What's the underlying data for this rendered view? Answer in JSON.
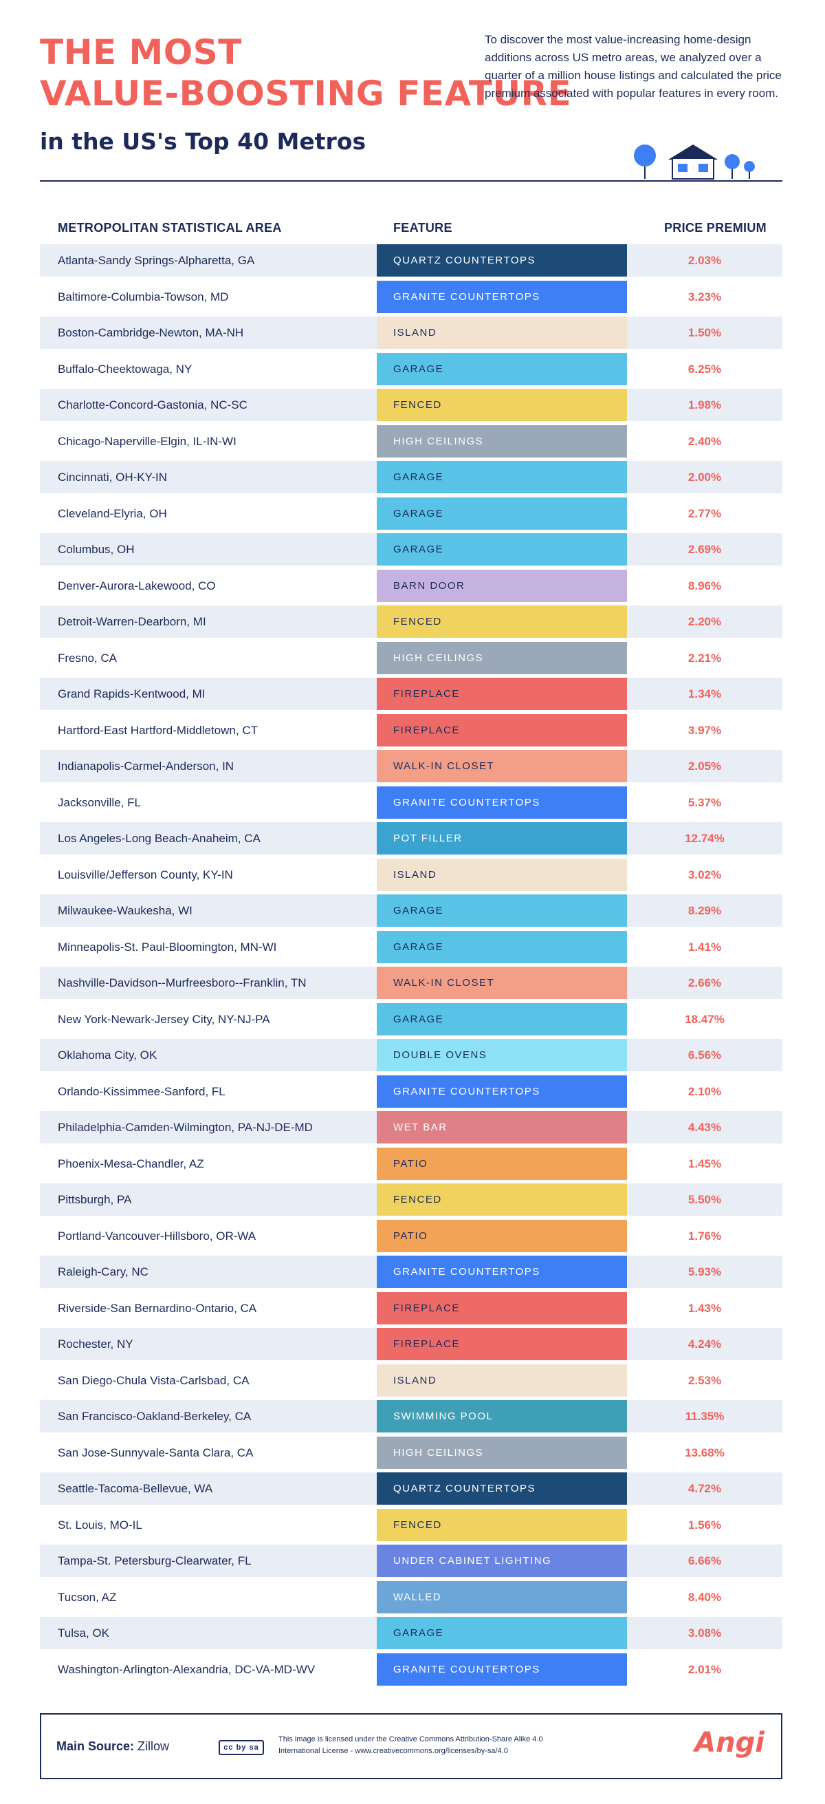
{
  "header": {
    "title_line1": "THE MOST",
    "title_line2": "VALUE-BOOSTING FEATURE",
    "title_line3": "in the US's Top 40 Metros",
    "intro": "To discover the most value-increasing home-design additions across US metro areas, we analyzed over a quarter of a million house listings and calculated the price premium associated with popular features in every room."
  },
  "colors": {
    "accent": "#f0625a",
    "navy": "#1c2a5a",
    "row_stripe": "#e9eef6"
  },
  "feature_colors": {
    "QUARTZ COUNTERTOPS": {
      "bg": "#1b4b76",
      "fg": "#ffffff"
    },
    "GRANITE COUNTERTOPS": {
      "bg": "#3e7ff5",
      "fg": "#ffffff"
    },
    "ISLAND": {
      "bg": "#f2e2d0",
      "fg": "#1c2a5a"
    },
    "GARAGE": {
      "bg": "#58c3e6",
      "fg": "#1c2a5a"
    },
    "FENCED": {
      "bg": "#f0d35f",
      "fg": "#1c2a5a"
    },
    "HIGH CEILINGS": {
      "bg": "#9aa8b8",
      "fg": "#ffffff"
    },
    "BARN DOOR": {
      "bg": "#c6b2e0",
      "fg": "#1c2a5a"
    },
    "FIREPLACE": {
      "bg": "#ee6a66",
      "fg": "#1c2a5a"
    },
    "WALK-IN CLOSET": {
      "bg": "#f39e86",
      "fg": "#1c2a5a"
    },
    "POT FILLER": {
      "bg": "#3aa3d0",
      "fg": "#ffffff"
    },
    "DOUBLE OVENS": {
      "bg": "#8ee2f6",
      "fg": "#1c2a5a"
    },
    "WET BAR": {
      "bg": "#de8086",
      "fg": "#ffffff"
    },
    "PATIO": {
      "bg": "#f3a356",
      "fg": "#1c2a5a"
    },
    "SWIMMING POOL": {
      "bg": "#3f9fb6",
      "fg": "#ffffff"
    },
    "UNDER CABINET LIGHTING": {
      "bg": "#6a84e2",
      "fg": "#ffffff"
    },
    "WALLED": {
      "bg": "#6ca5d8",
      "fg": "#ffffff"
    }
  },
  "chart_data": {
    "type": "table",
    "columns": [
      "METROPOLITAN STATISTICAL AREA",
      "FEATURE",
      "PRICE PREMIUM"
    ],
    "rows": [
      {
        "metro": "Atlanta-Sandy Springs-Alpharetta, GA",
        "feature": "QUARTZ COUNTERTOPS",
        "premium": "2.03%"
      },
      {
        "metro": "Baltimore-Columbia-Towson, MD",
        "feature": "GRANITE COUNTERTOPS",
        "premium": "3.23%"
      },
      {
        "metro": "Boston-Cambridge-Newton, MA-NH",
        "feature": "ISLAND",
        "premium": "1.50%"
      },
      {
        "metro": "Buffalo-Cheektowaga, NY",
        "feature": "GARAGE",
        "premium": "6.25%"
      },
      {
        "metro": "Charlotte-Concord-Gastonia, NC-SC",
        "feature": "FENCED",
        "premium": "1.98%"
      },
      {
        "metro": "Chicago-Naperville-Elgin, IL-IN-WI",
        "feature": "HIGH CEILINGS",
        "premium": "2.40%"
      },
      {
        "metro": "Cincinnati, OH-KY-IN",
        "feature": "GARAGE",
        "premium": "2.00%"
      },
      {
        "metro": "Cleveland-Elyria, OH",
        "feature": "GARAGE",
        "premium": "2.77%"
      },
      {
        "metro": "Columbus, OH",
        "feature": "GARAGE",
        "premium": "2.69%"
      },
      {
        "metro": "Denver-Aurora-Lakewood, CO",
        "feature": "BARN DOOR",
        "premium": "8.96%"
      },
      {
        "metro": "Detroit-Warren-Dearborn, MI",
        "feature": "FENCED",
        "premium": "2.20%"
      },
      {
        "metro": "Fresno, CA",
        "feature": "HIGH CEILINGS",
        "premium": "2.21%"
      },
      {
        "metro": "Grand Rapids-Kentwood, MI",
        "feature": "FIREPLACE",
        "premium": "1.34%"
      },
      {
        "metro": "Hartford-East Hartford-Middletown, CT",
        "feature": "FIREPLACE",
        "premium": "3.97%"
      },
      {
        "metro": "Indianapolis-Carmel-Anderson, IN",
        "feature": "WALK-IN CLOSET",
        "premium": "2.05%"
      },
      {
        "metro": "Jacksonville, FL",
        "feature": "GRANITE COUNTERTOPS",
        "premium": "5.37%"
      },
      {
        "metro": "Los Angeles-Long Beach-Anaheim, CA",
        "feature": "POT FILLER",
        "premium": "12.74%"
      },
      {
        "metro": "Louisville/Jefferson County, KY-IN",
        "feature": "ISLAND",
        "premium": "3.02%"
      },
      {
        "metro": "Milwaukee-Waukesha, WI",
        "feature": "GARAGE",
        "premium": "8.29%"
      },
      {
        "metro": "Minneapolis-St. Paul-Bloomington, MN-WI",
        "feature": "GARAGE",
        "premium": "1.41%"
      },
      {
        "metro": "Nashville-Davidson--Murfreesboro--Franklin, TN",
        "feature": "WALK-IN CLOSET",
        "premium": "2.66%"
      },
      {
        "metro": "New York-Newark-Jersey City, NY-NJ-PA",
        "feature": "GARAGE",
        "premium": "18.47%"
      },
      {
        "metro": "Oklahoma City, OK",
        "feature": "DOUBLE OVENS",
        "premium": "6.56%"
      },
      {
        "metro": "Orlando-Kissimmee-Sanford, FL",
        "feature": "GRANITE COUNTERTOPS",
        "premium": "2.10%"
      },
      {
        "metro": "Philadelphia-Camden-Wilmington, PA-NJ-DE-MD",
        "feature": "WET BAR",
        "premium": "4.43%"
      },
      {
        "metro": "Phoenix-Mesa-Chandler, AZ",
        "feature": "PATIO",
        "premium": "1.45%"
      },
      {
        "metro": "Pittsburgh, PA",
        "feature": "FENCED",
        "premium": "5.50%"
      },
      {
        "metro": "Portland-Vancouver-Hillsboro, OR-WA",
        "feature": "PATIO",
        "premium": "1.76%"
      },
      {
        "metro": "Raleigh-Cary, NC",
        "feature": "GRANITE COUNTERTOPS",
        "premium": "5.93%"
      },
      {
        "metro": "Riverside-San Bernardino-Ontario, CA",
        "feature": "FIREPLACE",
        "premium": "1.43%"
      },
      {
        "metro": "Rochester, NY",
        "feature": "FIREPLACE",
        "premium": "4.24%"
      },
      {
        "metro": "San Diego-Chula Vista-Carlsbad, CA",
        "feature": "ISLAND",
        "premium": "2.53%"
      },
      {
        "metro": "San Francisco-Oakland-Berkeley, CA",
        "feature": "SWIMMING POOL",
        "premium": "11.35%"
      },
      {
        "metro": "San Jose-Sunnyvale-Santa Clara, CA",
        "feature": "HIGH CEILINGS",
        "premium": "13.68%"
      },
      {
        "metro": "Seattle-Tacoma-Bellevue, WA",
        "feature": "QUARTZ COUNTERTOPS",
        "premium": "4.72%"
      },
      {
        "metro": "St. Louis, MO-IL",
        "feature": "FENCED",
        "premium": "1.56%"
      },
      {
        "metro": "Tampa-St. Petersburg-Clearwater, FL",
        "feature": "UNDER CABINET LIGHTING",
        "premium": "6.66%"
      },
      {
        "metro": "Tucson, AZ",
        "feature": "WALLED",
        "premium": "8.40%"
      },
      {
        "metro": "Tulsa, OK",
        "feature": "GARAGE",
        "premium": "3.08%"
      },
      {
        "metro": "Washington-Arlington-Alexandria, DC-VA-MD-WV",
        "feature": "GRANITE COUNTERTOPS",
        "premium": "2.01%"
      }
    ]
  },
  "footer": {
    "source_label": "Main Source:",
    "source_value": "Zillow",
    "cc_badge": "cc by sa",
    "license": "This image is licensed under the Creative Commons Attribution-Share Alike 4.0 International License - www.creativecommons.org/licenses/by-sa/4.0",
    "brand": "Angi"
  }
}
